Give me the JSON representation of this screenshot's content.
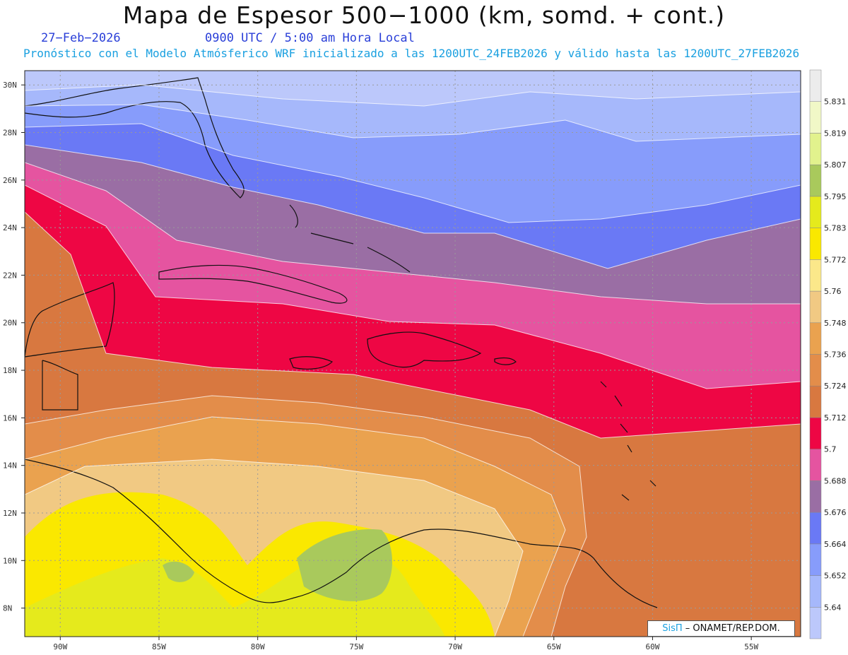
{
  "header": {
    "title": "Mapa de Espesor 500−1000 (km, somd. + cont.)",
    "date": "27−Feb−2026",
    "utc_time": "0900 UTC / 5:00 am Hora Local",
    "subtitle": "Pronóstico con el Modelo Atmósferico WRF inicializado a las 1200UTC_24FEB2026 y válido hasta las  1200UTC_27FEB2026"
  },
  "map": {
    "lat_labels": [
      "30N",
      "28N",
      "26N",
      "24N",
      "22N",
      "20N",
      "18N",
      "16N",
      "14N",
      "12N",
      "10N",
      "8N"
    ],
    "lon_labels": [
      "90W",
      "85W",
      "80W",
      "75W",
      "70W",
      "65W",
      "60W",
      "55W"
    ],
    "lat_values": [
      30,
      28,
      26,
      24,
      22,
      20,
      18,
      16,
      14,
      12,
      10,
      8
    ],
    "lon_values": [
      -90,
      -85,
      -80,
      -75,
      -70,
      -65,
      -60,
      -55
    ],
    "extent": {
      "lon_min": -91.8,
      "lon_max": -52.5,
      "lat_min": 6.8,
      "lat_max": 30.6
    }
  },
  "legend": {
    "levels": [
      "5.64",
      "5.652",
      "5.664",
      "5.676",
      "5.688",
      "5.7",
      "5.712",
      "5.724",
      "5.736",
      "5.748",
      "5.76",
      "5.772",
      "5.783",
      "5.795",
      "5.807",
      "5.819",
      "5.831"
    ],
    "colors": [
      "#bcc8fb",
      "#a6b8fb",
      "#879cfb",
      "#6a79f5",
      "#9a6ea4",
      "#e554a0",
      "#ee0644",
      "#d87840",
      "#e38d4a",
      "#eaa24f",
      "#f1c983",
      "#fbe88a",
      "#fae800",
      "#e5ea1c",
      "#a9c95c",
      "#e2f28d",
      "#f1f8c7",
      "#ececec"
    ]
  },
  "credit": {
    "sis": "SisΠ",
    "text": " – ONAMET/REP.DOM."
  }
}
